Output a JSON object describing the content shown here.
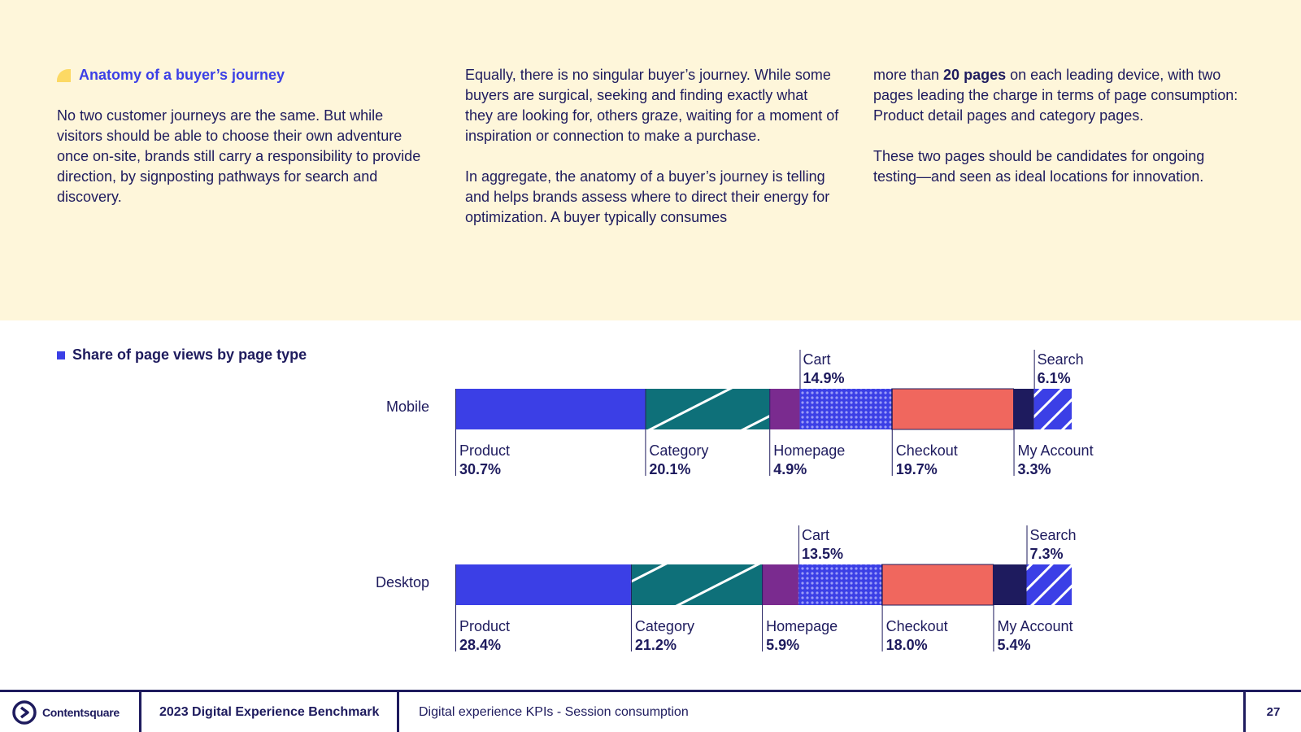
{
  "intro": {
    "section_title": "Anatomy of a buyer’s journey",
    "col1": "No two customer journeys are the same. But while visitors should be able to choose their own adventure once on-site, brands still carry a responsibility to provide direction, by signposting pathways for search and discovery.",
    "col2_p1": "Equally, there is no singular buyer’s journey. While some buyers are surgical, seeking and finding exactly what they are looking for, others graze, waiting for a moment of inspiration or connection to make a purchase.",
    "col2_p2": "In aggregate, the anatomy of a buyer’s journey is telling and helps brands assess where to direct their energy for optimization. A buyer typically consumes",
    "col3_p1_pre": "more than ",
    "col3_p1_bold": "20 pages",
    "col3_p1_post": " on each leading device, with two pages leading the charge in terms of page consumption: Product detail pages and category pages.",
    "col3_p2": "These two pages should be candidates for ongoing testing—and seen as ideal locations for innovation."
  },
  "chart_data": {
    "type": "bar",
    "title": "Share of page views by page type",
    "categories": [
      "Product",
      "Category",
      "Homepage",
      "Cart",
      "Checkout",
      "My Account",
      "Search"
    ],
    "colors": [
      "#3b3fe6",
      "#0e7079",
      "#7a2b8f",
      "#6a6cf0",
      "#f0675e",
      "#1e1b5e",
      "#3b3fe6"
    ],
    "series": [
      {
        "name": "Mobile",
        "values": [
          30.7,
          20.1,
          4.9,
          14.9,
          19.7,
          3.3,
          6.1
        ]
      },
      {
        "name": "Desktop",
        "values": [
          28.4,
          21.2,
          5.9,
          13.5,
          18.0,
          5.4,
          7.3
        ]
      }
    ],
    "unit": "%"
  },
  "footer": {
    "brand": "Contentsquare",
    "report": "2023 Digital Experience Benchmark",
    "section": "Digital experience KPIs - Session consumption",
    "page": "27"
  }
}
